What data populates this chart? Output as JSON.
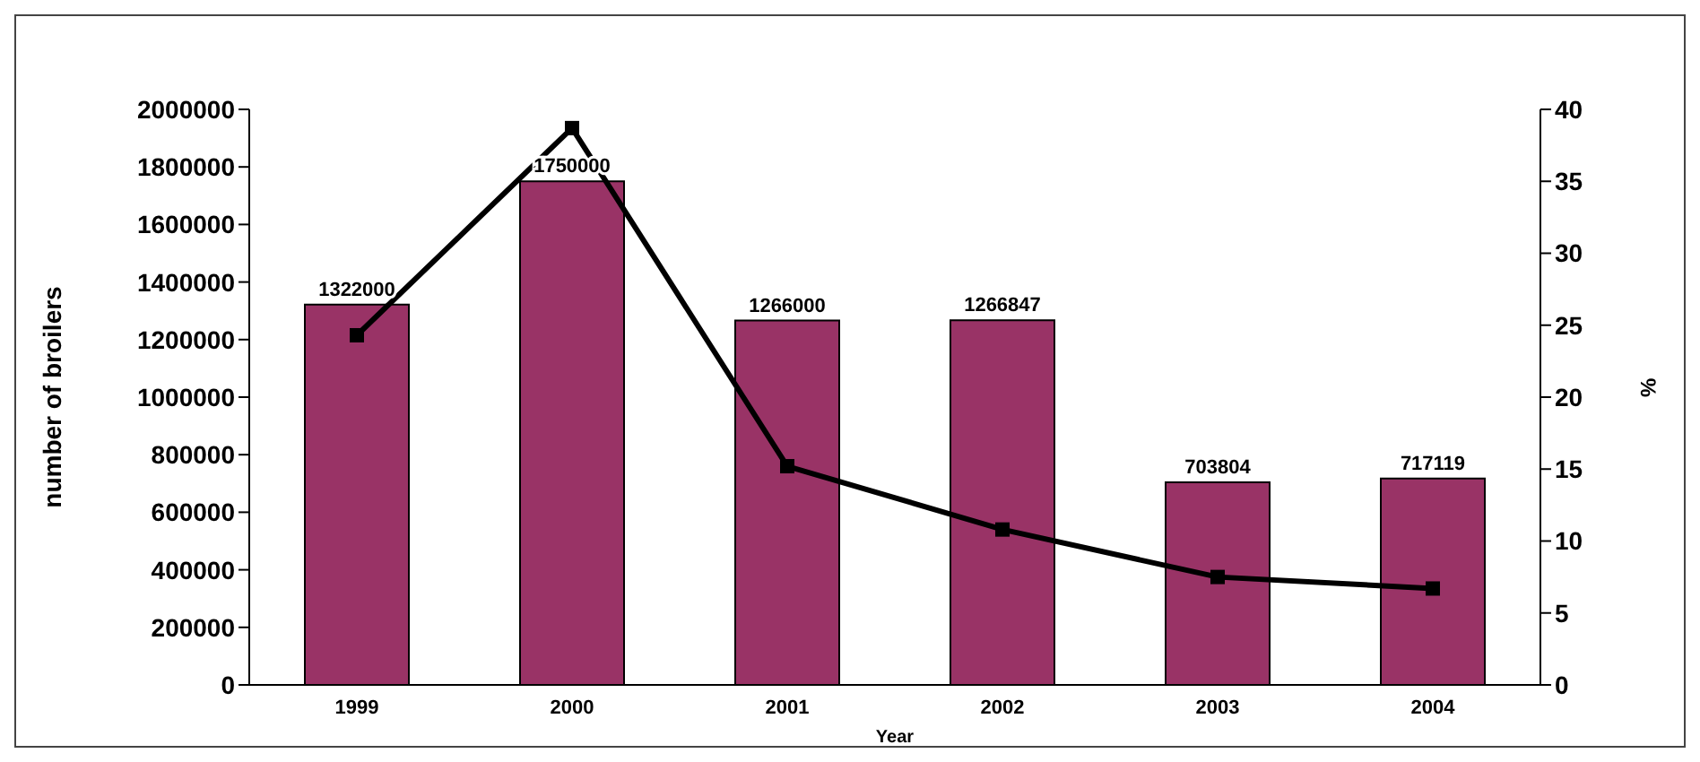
{
  "chart_data": {
    "type": "bar",
    "categories": [
      "1999",
      "2000",
      "2001",
      "2002",
      "2003",
      "2004"
    ],
    "xlabel": "Year",
    "ylabel": "number of broilers",
    "y2label": "%",
    "series": [
      {
        "color": "#993366",
        "values": [
          1322000,
          1750000,
          1266000,
          1266847,
          703804,
          717119
        ],
        "data_labels": true
      },
      {
        "type": "line",
        "axis": "y2",
        "color": "#000000",
        "values": [
          24.3,
          38.7,
          15.2,
          10.8,
          7.5,
          6.7
        ],
        "marker": "square"
      }
    ],
    "ylim": [
      0,
      2000000
    ],
    "yticks": [
      0,
      200000,
      400000,
      600000,
      800000,
      1000000,
      1200000,
      1400000,
      1600000,
      1800000,
      2000000
    ],
    "y2lim": [
      0,
      40
    ],
    "y2ticks": [
      0,
      5,
      10,
      15,
      20,
      25,
      30,
      35,
      40
    ],
    "grid": false,
    "legend": false
  }
}
